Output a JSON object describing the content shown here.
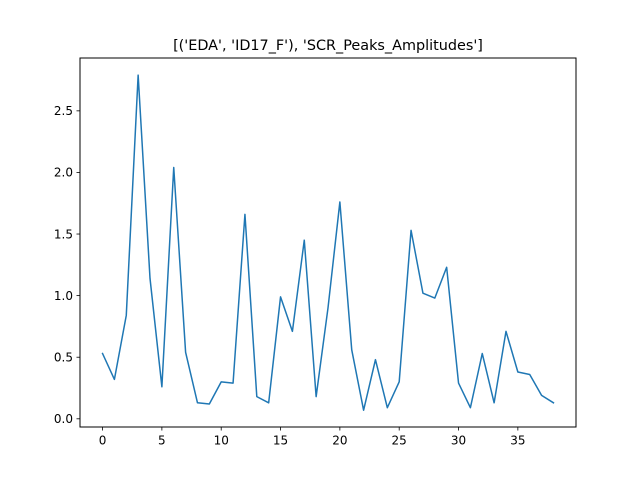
{
  "chart_data": {
    "type": "line",
    "title": "[('EDA', 'ID17_F'), 'SCR_Peaks_Amplitudes']",
    "xlabel": "",
    "ylabel": "",
    "xlim": [
      -1.9,
      39.9
    ],
    "ylim": [
      -0.0665,
      2.929
    ],
    "xticks": [
      0,
      5,
      10,
      15,
      20,
      25,
      30,
      35
    ],
    "xtick_labels": [
      "0",
      "5",
      "10",
      "15",
      "20",
      "25",
      "30",
      "35"
    ],
    "yticks": [
      0.0,
      0.5,
      1.0,
      1.5,
      2.0,
      2.5
    ],
    "ytick_labels": [
      "0.0",
      "0.5",
      "1.0",
      "1.5",
      "2.0",
      "2.5"
    ],
    "grid": false,
    "series": [
      {
        "color": "#1f77b4",
        "x": [
          0,
          1,
          2,
          3,
          4,
          5,
          6,
          7,
          8,
          9,
          10,
          11,
          12,
          13,
          14,
          15,
          16,
          17,
          18,
          19,
          20,
          21,
          22,
          23,
          24,
          25,
          26,
          27,
          28,
          29,
          30,
          31,
          32,
          33,
          34,
          35,
          36,
          37,
          38
        ],
        "values": [
          0.53,
          0.32,
          0.84,
          2.79,
          1.14,
          0.26,
          2.04,
          0.54,
          0.13,
          0.12,
          0.3,
          0.29,
          1.66,
          0.18,
          0.13,
          0.99,
          0.71,
          1.45,
          0.18,
          0.9,
          1.76,
          0.56,
          0.07,
          0.48,
          0.09,
          0.3,
          1.53,
          1.02,
          0.98,
          1.23,
          0.29,
          0.09,
          0.53,
          0.13,
          0.71,
          0.38,
          0.36,
          0.19,
          0.13
        ]
      }
    ]
  }
}
